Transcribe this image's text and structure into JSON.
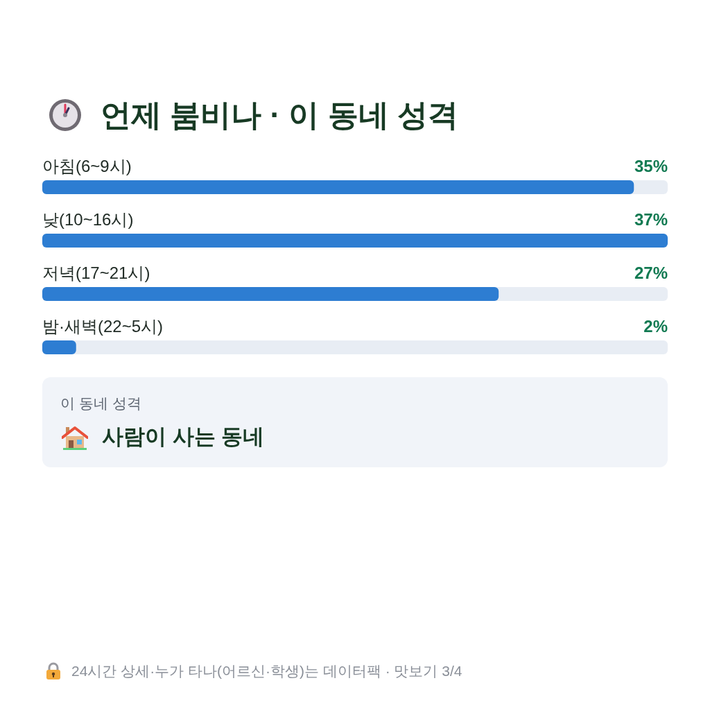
{
  "chart_data": {
    "type": "bar",
    "orientation": "horizontal",
    "title": "언제 붐비나 · 이 동네 성격",
    "categories": [
      "아침(6~9시)",
      "낮(10~16시)",
      "저녁(17~21시)",
      "밤·새벽(22~5시)"
    ],
    "values": [
      35,
      37,
      27,
      2
    ],
    "value_labels": [
      "35%",
      "37%",
      "27%",
      "2%"
    ],
    "color": "#2d7dd2",
    "annotations": [
      "이 동네 성격",
      "사람이 사는 동네",
      "24시간 상세·누가 타나(어르신·학생)는 데이터팩 · 맛보기 3/4"
    ]
  }
}
